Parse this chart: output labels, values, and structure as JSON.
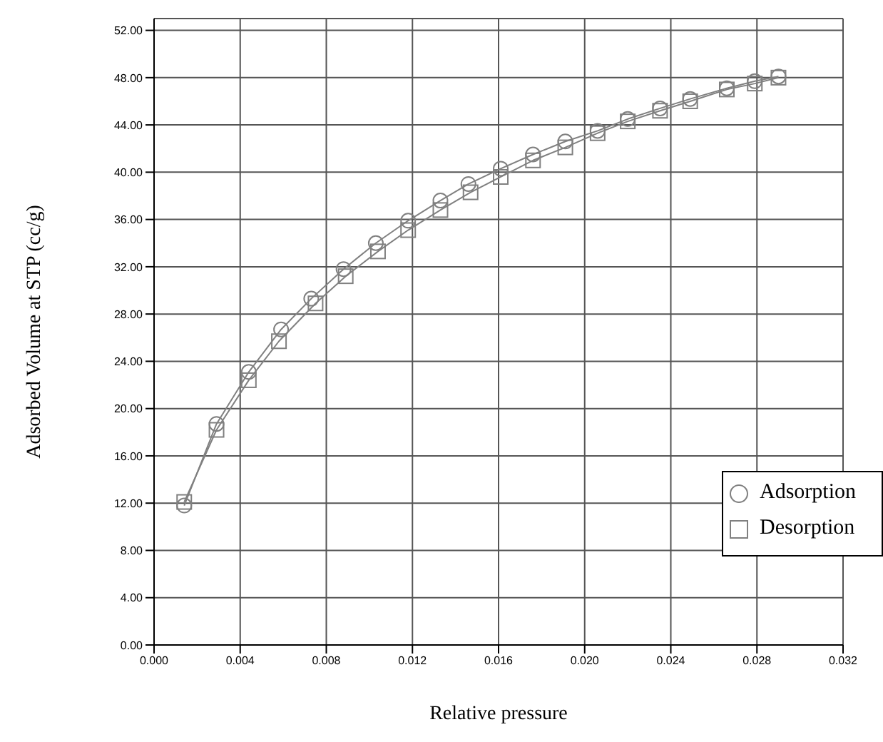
{
  "chart_data": {
    "type": "line",
    "xlabel": "Relative pressure",
    "ylabel": "Adsorbed Volume at STP (cc/g)",
    "xlim": [
      0,
      0.032
    ],
    "xticks": [
      {
        "value": 0,
        "label": "0.000"
      },
      {
        "value": 0.004,
        "label": "0.004"
      },
      {
        "value": 0.008,
        "label": "0.008"
      },
      {
        "value": 0.012,
        "label": "0.012"
      },
      {
        "value": 0.016,
        "label": "0.016"
      },
      {
        "value": 0.02,
        "label": "0.020"
      },
      {
        "value": 0.024,
        "label": "0.024"
      },
      {
        "value": 0.028,
        "label": "0.028"
      },
      {
        "value": 0.032,
        "label": "0.032"
      }
    ],
    "ylim": [
      0,
      53
    ],
    "yticks": [
      {
        "value": 0,
        "label": "0.00"
      },
      {
        "value": 4,
        "label": "4.00"
      },
      {
        "value": 8,
        "label": "8.00"
      },
      {
        "value": 12,
        "label": "12.00"
      },
      {
        "value": 16,
        "label": "16.00"
      },
      {
        "value": 20,
        "label": "20.00"
      },
      {
        "value": 24,
        "label": "24.00"
      },
      {
        "value": 28,
        "label": "28.00"
      },
      {
        "value": 32,
        "label": "32.00"
      },
      {
        "value": 36,
        "label": "36.00"
      },
      {
        "value": 40,
        "label": "40.00"
      },
      {
        "value": 44,
        "label": "44.00"
      },
      {
        "value": 48,
        "label": "48.00"
      },
      {
        "value": 52,
        "label": "52.00"
      }
    ],
    "grid": true,
    "legend": "right",
    "series": [
      {
        "name": "Adsorption",
        "color": "#808080",
        "marker": "circle",
        "x": [
          0.0014,
          0.0029,
          0.0044,
          0.0059,
          0.0073,
          0.0088,
          0.0103,
          0.0118,
          0.0133,
          0.0146,
          0.0161,
          0.0176,
          0.0191,
          0.0206,
          0.022,
          0.0235,
          0.0249,
          0.0266,
          0.0279,
          0.029
        ],
        "values": [
          11.8,
          18.7,
          23.1,
          26.7,
          29.3,
          31.8,
          34.0,
          35.9,
          37.6,
          39.0,
          40.3,
          41.5,
          42.6,
          43.5,
          44.5,
          45.4,
          46.2,
          47.1,
          47.7,
          48.1
        ]
      },
      {
        "name": "Desorption",
        "color": "#808080",
        "marker": "square",
        "x": [
          0.0014,
          0.0029,
          0.0044,
          0.0058,
          0.0075,
          0.0089,
          0.0104,
          0.0118,
          0.0133,
          0.0147,
          0.0161,
          0.0176,
          0.0191,
          0.0206,
          0.022,
          0.0235,
          0.0249,
          0.0266,
          0.0279,
          0.029
        ],
        "values": [
          12.1,
          18.2,
          22.4,
          25.7,
          28.9,
          31.2,
          33.3,
          35.1,
          36.8,
          38.3,
          39.6,
          41.0,
          42.1,
          43.3,
          44.3,
          45.2,
          46.0,
          47.0,
          47.5,
          48.0
        ]
      }
    ]
  }
}
